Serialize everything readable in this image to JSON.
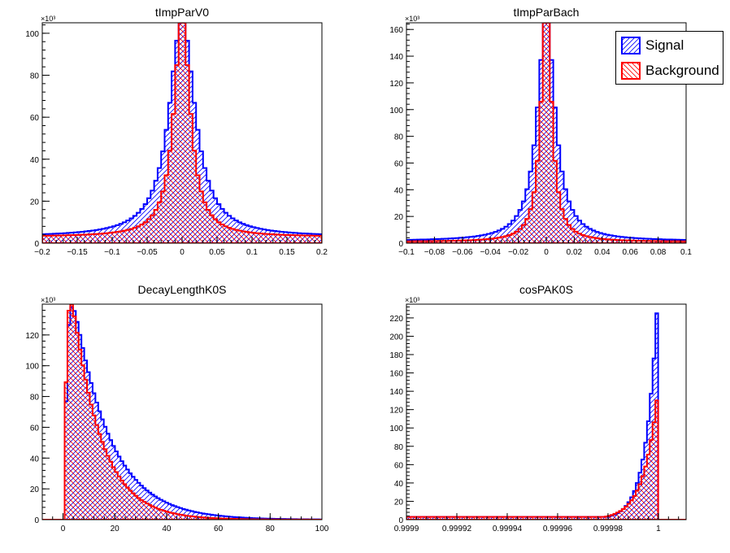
{
  "colors": {
    "signal": "#0000ff",
    "background": "#ff0000",
    "axis": "#000000",
    "frame_bg": "#ffffff"
  },
  "legend": {
    "items": [
      {
        "label": "Signal",
        "color": "#0000ff",
        "hatch": "forward"
      },
      {
        "label": "Background",
        "color": "#ff0000",
        "hatch": "backward"
      }
    ]
  },
  "chart_data": [
    {
      "type": "histogram",
      "title": "tImpParV0",
      "exponent_label": "×10³",
      "xlim": [
        -0.2,
        0.2
      ],
      "ylim": [
        0,
        105
      ],
      "xticks": [
        -0.2,
        -0.15,
        -0.1,
        -0.05,
        0,
        0.05,
        0.1,
        0.15,
        0.2
      ],
      "xtick_labels": [
        "−0.2",
        "−0.15",
        "−0.1",
        "−0.05",
        "0",
        "0.05",
        "0.1",
        "0.15",
        "0.2"
      ],
      "yticks": [
        0,
        20,
        40,
        60,
        80,
        100
      ],
      "ytick_labels": [
        "0",
        "20",
        "40",
        "60",
        "80",
        "100"
      ],
      "bins": 80,
      "series": [
        {
          "name": "Signal",
          "shape": "lorentz",
          "center": 0.0,
          "width": 0.022,
          "tail": 3.0,
          "peak": 103
        },
        {
          "name": "Background",
          "shape": "lorentz",
          "center": 0.0,
          "width": 0.014,
          "tail": 3.0,
          "peak": 102
        }
      ]
    },
    {
      "type": "histogram",
      "title": "tImpParBach",
      "exponent_label": "×10³",
      "xlim": [
        -0.1,
        0.1
      ],
      "ylim": [
        0,
        165
      ],
      "xticks": [
        -0.1,
        -0.08,
        -0.06,
        -0.04,
        -0.02,
        0,
        0.02,
        0.04,
        0.06,
        0.08,
        0.1
      ],
      "xtick_labels": [
        "−0.1",
        "−0.08",
        "−0.06",
        "−0.04",
        "−0.02",
        "0",
        "0.02",
        "0.04",
        "0.06",
        "0.08",
        "0.1"
      ],
      "yticks": [
        0,
        20,
        40,
        60,
        80,
        100,
        120,
        140,
        160
      ],
      "ytick_labels": [
        "0",
        "20",
        "40",
        "60",
        "80",
        "100",
        "120",
        "140",
        "160"
      ],
      "bins": 80,
      "series": [
        {
          "name": "Signal",
          "shape": "lorentz",
          "center": 0.0,
          "width": 0.0075,
          "tail": 1.5,
          "peak": 165
        },
        {
          "name": "Background",
          "shape": "lorentz",
          "center": 0.0,
          "width": 0.0045,
          "tail": 1.0,
          "peak": 165
        }
      ]
    },
    {
      "type": "histogram",
      "title": "DecayLengthK0S",
      "exponent_label": "×10³",
      "xlim": [
        -8,
        100
      ],
      "ylim": [
        0,
        140
      ],
      "xticks": [
        0,
        20,
        40,
        60,
        80,
        100
      ],
      "xtick_labels": [
        "0",
        "20",
        "40",
        "60",
        "80",
        "100"
      ],
      "yticks": [
        0,
        20,
        40,
        60,
        80,
        100,
        120
      ],
      "ytick_labels": [
        "0",
        "20",
        "40",
        "60",
        "80",
        "100",
        "120"
      ],
      "bins": 100,
      "series": [
        {
          "name": "Signal",
          "shape": "decay",
          "start": 0.5,
          "rise": 1.2,
          "tau": 14.0,
          "peak": 138
        },
        {
          "name": "Background",
          "shape": "decay",
          "start": 0.5,
          "rise": 1.0,
          "tau": 11.0,
          "peak": 140
        }
      ]
    },
    {
      "type": "histogram",
      "title": "cosPAK0S",
      "exponent_label": "×10³",
      "xlim": [
        0.9999,
        1.000011
      ],
      "ylim": [
        0,
        235
      ],
      "xticks": [
        0.9999,
        0.99992,
        0.99994,
        0.99996,
        0.99998,
        1
      ],
      "xtick_labels": [
        "0.9999",
        "0.99992",
        "0.99994",
        "0.99996",
        "0.99998",
        "1"
      ],
      "yticks": [
        0,
        20,
        40,
        60,
        80,
        100,
        120,
        140,
        160,
        180,
        200,
        220
      ],
      "ytick_labels": [
        "0",
        "20",
        "40",
        "60",
        "80",
        "100",
        "120",
        "140",
        "160",
        "180",
        "200",
        "220"
      ],
      "bins": 100,
      "series": [
        {
          "name": "Signal",
          "shape": "edge",
          "edge": 1.0,
          "scale": 4.5e-06,
          "base": 3,
          "peak": 225
        },
        {
          "name": "Background",
          "shape": "edge",
          "edge": 1.0,
          "scale": 5.5e-06,
          "base": 3,
          "peak": 130
        }
      ]
    }
  ]
}
